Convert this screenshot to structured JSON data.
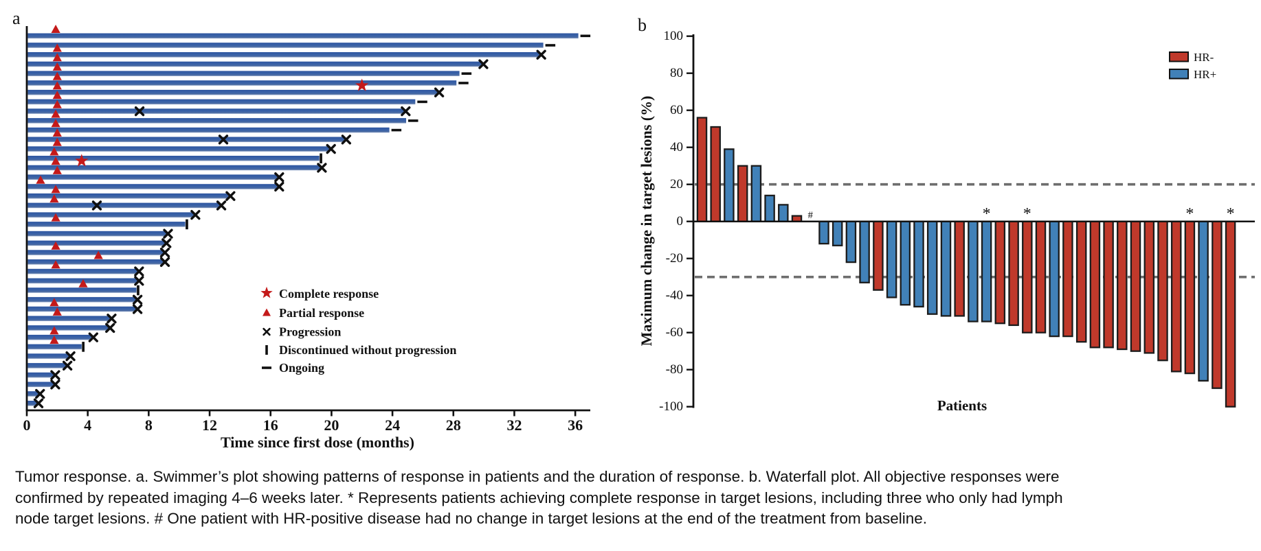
{
  "figure": {
    "panel_a_label": "a",
    "panel_b_label": "b"
  },
  "chart_data": [
    {
      "id": "a",
      "type": "bar",
      "subtype": "swimmer",
      "orientation": "horizontal",
      "xlabel": "Time since first dose (months)",
      "xlim": [
        0,
        37
      ],
      "xticks": [
        0,
        4,
        8,
        12,
        16,
        20,
        24,
        28,
        32,
        36
      ],
      "grid": false,
      "bar_color": "#3b62a6",
      "marker_colors": {
        "complete_response": "#c41a1a",
        "partial_response": "#c41a1a",
        "progression": "#111111",
        "discontinued": "#111111",
        "ongoing": "#111111"
      },
      "legend_position": "center-bottom-left",
      "legend": [
        {
          "marker": "star",
          "label": "Complete response"
        },
        {
          "marker": "triangle",
          "label": "Partial response"
        },
        {
          "marker": "x",
          "label": "Progression"
        },
        {
          "marker": "bar",
          "label": "Discontinued without progression"
        },
        {
          "marker": "dash",
          "label": "Ongoing"
        }
      ],
      "patients": [
        {
          "duration": 36.2,
          "partial_response_at": 1.9,
          "end": "ongoing"
        },
        {
          "duration": 33.9,
          "end": "ongoing"
        },
        {
          "duration": 33.7,
          "partial_response_at": 2.0,
          "end": "progression"
        },
        {
          "duration": 29.9,
          "partial_response_at": 2.0,
          "end": "progression"
        },
        {
          "duration": 28.4,
          "partial_response_at": 2.0,
          "end": "ongoing"
        },
        {
          "duration": 28.2,
          "partial_response_at": 2.0,
          "end": "ongoing"
        },
        {
          "duration": 27.0,
          "partial_response_at": 2.0,
          "complete_response_at": 22.0,
          "end": "progression"
        },
        {
          "duration": 25.5,
          "partial_response_at": 2.0,
          "end": "ongoing"
        },
        {
          "duration": 24.8,
          "partial_response_at": 2.0,
          "progression_at": [
            7.4
          ],
          "end": "progression"
        },
        {
          "duration": 24.9,
          "partial_response_at": 1.9,
          "end": "ongoing"
        },
        {
          "duration": 23.8,
          "partial_response_at": 1.9,
          "end": "ongoing"
        },
        {
          "duration": 20.9,
          "partial_response_at": 2.0,
          "progression_at": [
            12.9
          ],
          "end": "progression"
        },
        {
          "duration": 19.9,
          "partial_response_at": 2.0,
          "end": "progression"
        },
        {
          "duration": 19.2,
          "partial_response_at": 1.8,
          "end": "discontinued"
        },
        {
          "duration": 19.3,
          "partial_response_at": 1.9,
          "complete_response_at": 3.6,
          "end": "progression"
        },
        {
          "duration": 16.5,
          "partial_response_at": 2.0,
          "end": "progression"
        },
        {
          "duration": 16.5,
          "partial_response_at": 0.9,
          "end": "progression"
        },
        {
          "duration": 13.3,
          "partial_response_at": 1.9,
          "end": "progression"
        },
        {
          "duration": 12.7,
          "partial_response_at": 1.8,
          "progression_at": [
            4.6
          ],
          "end": "progression"
        },
        {
          "duration": 11.0,
          "end": "progression"
        },
        {
          "duration": 10.4,
          "partial_response_at": 1.9,
          "end": "discontinued"
        },
        {
          "duration": 9.2,
          "end": "progression"
        },
        {
          "duration": 9.1,
          "end": "progression"
        },
        {
          "duration": 9.0,
          "partial_response_at": 1.9,
          "end": "progression"
        },
        {
          "duration": 9.0,
          "partial_response_at": 4.7,
          "end": "progression"
        },
        {
          "duration": 7.3,
          "partial_response_at": 1.9,
          "end": "progression"
        },
        {
          "duration": 7.3,
          "end": "progression"
        },
        {
          "duration": 7.2,
          "partial_response_at": 3.7,
          "end": "discontinued"
        },
        {
          "duration": 7.2,
          "end": "progression"
        },
        {
          "duration": 7.2,
          "partial_response_at": 1.8,
          "end": "progression"
        },
        {
          "duration": 5.5,
          "partial_response_at": 2.0,
          "end": "progression"
        },
        {
          "duration": 5.4,
          "end": "progression"
        },
        {
          "duration": 4.3,
          "partial_response_at": 1.8,
          "end": "progression"
        },
        {
          "duration": 3.6,
          "partial_response_at": 1.8,
          "end": "discontinued"
        },
        {
          "duration": 2.8,
          "end": "progression"
        },
        {
          "duration": 2.6,
          "end": "progression"
        },
        {
          "duration": 1.8,
          "end": "progression"
        },
        {
          "duration": 1.8,
          "end": "progression"
        },
        {
          "duration": 0.8,
          "end": "progression"
        },
        {
          "duration": 0.7,
          "end": "progression"
        }
      ]
    },
    {
      "id": "b",
      "type": "bar",
      "subtype": "waterfall",
      "ylabel": "Maximum change in target lesions (%)",
      "xlabel": "Patients",
      "ylim": [
        -100,
        100
      ],
      "yticks": [
        100,
        80,
        60,
        40,
        20,
        0,
        -20,
        -40,
        -60,
        -80,
        -100
      ],
      "reference_lines": [
        20,
        -30
      ],
      "reference_line_color": "#6e6e6e",
      "legend_position": "top-right",
      "legend": [
        {
          "label": "HR-",
          "color": "#c0392b"
        },
        {
          "label": "HR+",
          "color": "#4181b8"
        }
      ],
      "bars": [
        {
          "value": 56,
          "group": "HR-"
        },
        {
          "value": 51,
          "group": "HR-"
        },
        {
          "value": 39,
          "group": "HR+"
        },
        {
          "value": 30,
          "group": "HR-"
        },
        {
          "value": 30,
          "group": "HR+"
        },
        {
          "value": 14,
          "group": "HR+"
        },
        {
          "value": 9,
          "group": "HR+"
        },
        {
          "value": 3,
          "group": "HR-"
        },
        {
          "value": 0,
          "group": "HR+",
          "annotation": "#"
        },
        {
          "value": -12,
          "group": "HR+"
        },
        {
          "value": -13,
          "group": "HR+"
        },
        {
          "value": -22,
          "group": "HR+"
        },
        {
          "value": -33,
          "group": "HR+"
        },
        {
          "value": -37,
          "group": "HR-"
        },
        {
          "value": -41,
          "group": "HR+"
        },
        {
          "value": -45,
          "group": "HR+"
        },
        {
          "value": -46,
          "group": "HR+"
        },
        {
          "value": -50,
          "group": "HR+"
        },
        {
          "value": -51,
          "group": "HR+"
        },
        {
          "value": -51,
          "group": "HR-"
        },
        {
          "value": -54,
          "group": "HR+"
        },
        {
          "value": -54,
          "group": "HR+",
          "annotation": "*"
        },
        {
          "value": -55,
          "group": "HR-"
        },
        {
          "value": -56,
          "group": "HR-"
        },
        {
          "value": -60,
          "group": "HR-",
          "annotation": "*"
        },
        {
          "value": -60,
          "group": "HR-"
        },
        {
          "value": -62,
          "group": "HR+"
        },
        {
          "value": -62,
          "group": "HR-"
        },
        {
          "value": -65,
          "group": "HR-"
        },
        {
          "value": -68,
          "group": "HR-"
        },
        {
          "value": -68,
          "group": "HR-"
        },
        {
          "value": -69,
          "group": "HR-"
        },
        {
          "value": -70,
          "group": "HR-"
        },
        {
          "value": -71,
          "group": "HR-"
        },
        {
          "value": -75,
          "group": "HR-"
        },
        {
          "value": -81,
          "group": "HR-"
        },
        {
          "value": -82,
          "group": "HR-",
          "annotation": "*"
        },
        {
          "value": -86,
          "group": "HR+"
        },
        {
          "value": -90,
          "group": "HR-"
        },
        {
          "value": -100,
          "group": "HR-",
          "annotation": "*"
        }
      ]
    }
  ],
  "caption": {
    "lines": [
      "Tumor response. a. Swimmer’s plot showing patterns of response in patients and the duration of response. b. Waterfall plot. All objective responses were",
      "confirmed by repeated imaging 4–6 weeks later. * Represents patients achieving complete response in target lesions, including three who only had lymph",
      "node target lesions. # One patient with HR-positive disease had no change in target lesions at the end of the treatment from baseline."
    ]
  }
}
